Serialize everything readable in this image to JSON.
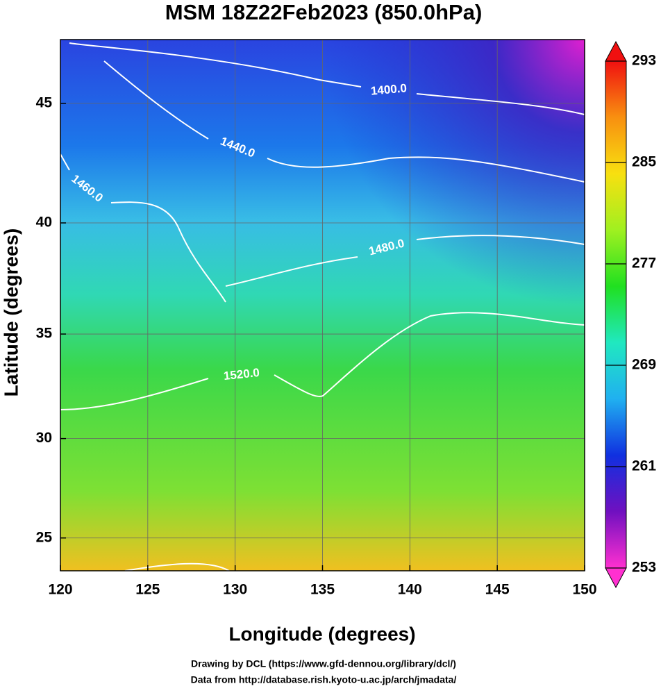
{
  "chart_data": {
    "type": "map",
    "title": "MSM 18Z22Feb2023 (850.0hPa)",
    "x_label": "Longitude (degrees)",
    "y_label": "Latitude  (degrees)",
    "xlim": [
      120,
      150
    ],
    "ylim": [
      23.3,
      47.5
    ],
    "xticks": [
      120,
      125,
      130,
      135,
      140,
      145,
      150
    ],
    "yticks": [
      25,
      30,
      35,
      40,
      45
    ],
    "projection": "mercator",
    "grid": true,
    "contours": [
      {
        "value": 1400,
        "label": "1400.0"
      },
      {
        "value": 1440,
        "label": "1440.0"
      },
      {
        "value": 1460,
        "label": "1460.0"
      },
      {
        "value": 1480,
        "label": "1480.0"
      },
      {
        "value": 1520,
        "label": "1520.0"
      }
    ],
    "colorbar": {
      "lim": [
        253,
        293
      ],
      "ticks": [
        253,
        261,
        269,
        277,
        285,
        293
      ],
      "colors": [
        "#ff30d0",
        "#7010c0",
        "#1030e0",
        "#20b0f0",
        "#20e8c0",
        "#20e020",
        "#a0f020",
        "#f8e010",
        "#f89010",
        "#f01010"
      ]
    },
    "footer": [
      "Drawing by DCL (https://www.gfd-dennou.org/library/dcl/)",
      "Data from http://database.rish.kyoto-u.ac.jp/arch/jmadata/"
    ]
  }
}
